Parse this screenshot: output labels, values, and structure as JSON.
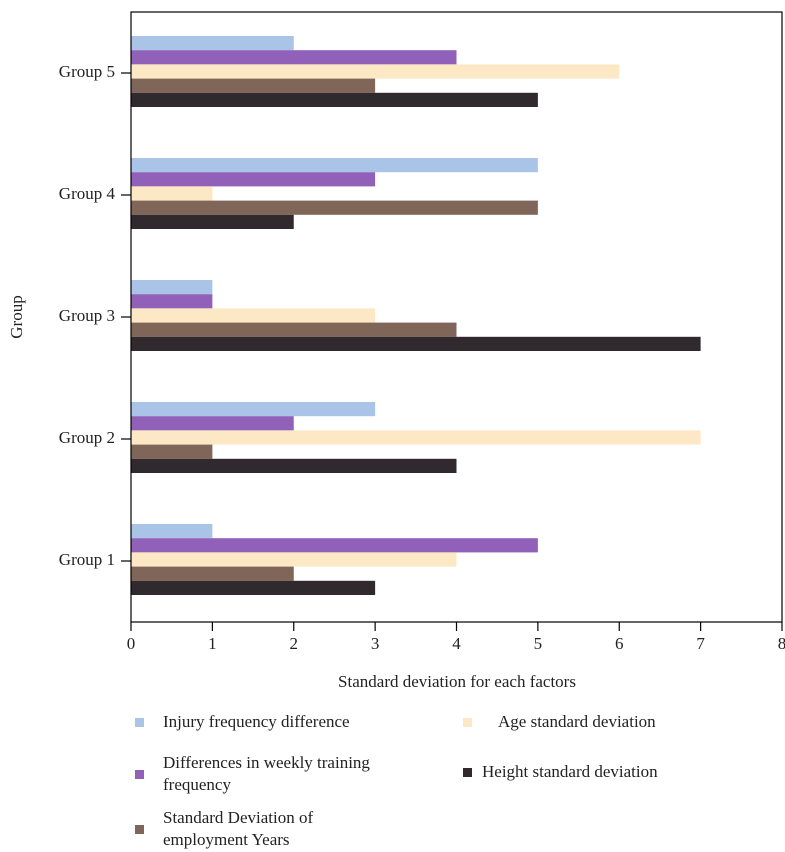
{
  "chart_data": {
    "type": "barh",
    "x_label": "Standard deviation for each factors",
    "y_label": "Group",
    "categories": [
      "Group 1",
      "Group 2",
      "Group 3",
      "Group 4",
      "Group 5"
    ],
    "series": [
      {
        "name": "Injury frequency difference",
        "color": "#a9c4e6",
        "values": [
          1,
          3,
          1,
          5,
          2
        ]
      },
      {
        "name": "Differences in weekly training frequency",
        "color": "#9161b9",
        "values": [
          5,
          2,
          1,
          3,
          4
        ]
      },
      {
        "name": "Age standard deviation",
        "color": "#fde8c5",
        "values": [
          4,
          7,
          3,
          1,
          6
        ]
      },
      {
        "name": "Standard Deviation of employment Years",
        "color": "#806559",
        "values": [
          2,
          1,
          4,
          5,
          3
        ]
      },
      {
        "name": "Height standard deviation",
        "color": "#302a2f",
        "values": [
          3,
          4,
          7,
          2,
          5
        ]
      }
    ],
    "xlim": [
      0,
      8
    ],
    "xticks": [
      0,
      1,
      2,
      3,
      4,
      5,
      6,
      7,
      8
    ]
  }
}
